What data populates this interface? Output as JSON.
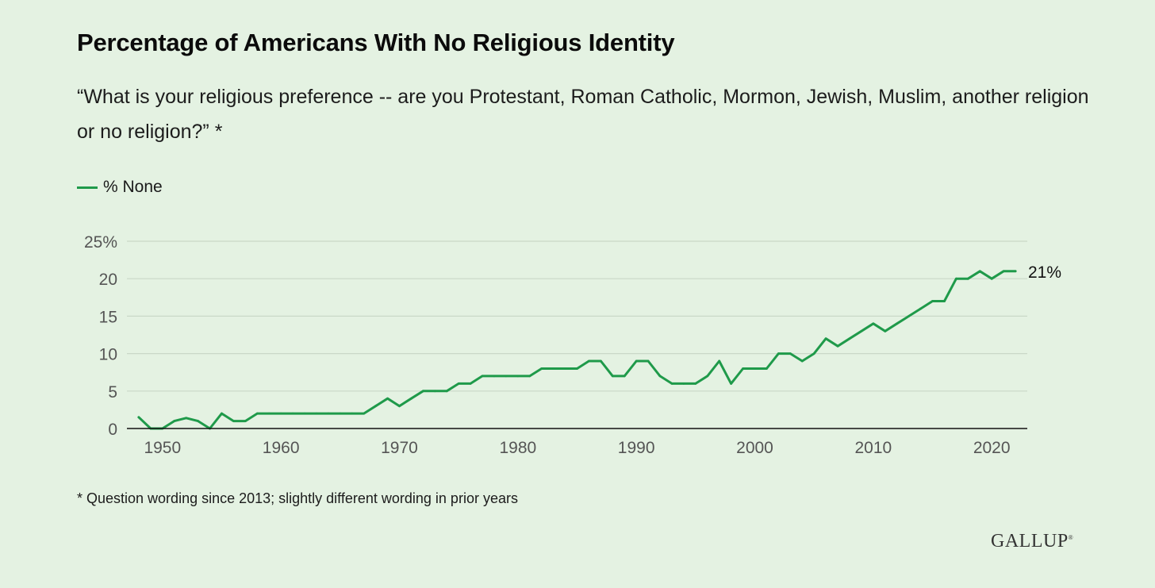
{
  "title": "Percentage of Americans With No Religious Identity",
  "subtitle": "“What is your religious preference -- are you Protestant, Roman Catholic, Mormon, Jewish, Muslim, another religion or no religion?” *",
  "footnote": "* Question wording since 2013; slightly different wording in prior years",
  "logo": "GALLUP",
  "colors": {
    "background": "#e4f2e2",
    "line": "#1f9a4a",
    "grid": "#c9d8c7",
    "axis": "#111111",
    "tick_text": "#555555"
  },
  "chart_data": {
    "type": "line",
    "title": "Percentage of Americans With No Religious Identity",
    "legend_position": "top-left",
    "grid": true,
    "xlim": [
      1947,
      2023
    ],
    "ylim": [
      0,
      25
    ],
    "x_ticks": [
      1950,
      1960,
      1970,
      1980,
      1990,
      2000,
      2010,
      2020
    ],
    "x_tick_labels": [
      "1950",
      "1960",
      "1970",
      "1980",
      "1990",
      "2000",
      "2010",
      "2020"
    ],
    "y_ticks": [
      0,
      5,
      10,
      15,
      20,
      25
    ],
    "y_tick_labels": [
      "0",
      "5",
      "10",
      "15",
      "20",
      "25%"
    ],
    "series": [
      {
        "name": "% None",
        "end_label": "21%",
        "points": [
          [
            1948,
            1.5
          ],
          [
            1949,
            0
          ],
          [
            1950,
            0
          ],
          [
            1951,
            1
          ],
          [
            1952,
            1.4
          ],
          [
            1953,
            1
          ],
          [
            1954,
            0
          ],
          [
            1955,
            2
          ],
          [
            1956,
            1
          ],
          [
            1957,
            1
          ],
          [
            1958,
            2
          ],
          [
            1959,
            2
          ],
          [
            1960,
            2
          ],
          [
            1961,
            2
          ],
          [
            1962,
            2
          ],
          [
            1963,
            2
          ],
          [
            1964,
            2
          ],
          [
            1965,
            2
          ],
          [
            1966,
            2
          ],
          [
            1967,
            2
          ],
          [
            1968,
            3
          ],
          [
            1969,
            4
          ],
          [
            1970,
            3
          ],
          [
            1971,
            4
          ],
          [
            1972,
            5
          ],
          [
            1973,
            5
          ],
          [
            1974,
            5
          ],
          [
            1975,
            6
          ],
          [
            1976,
            6
          ],
          [
            1977,
            7
          ],
          [
            1978,
            7
          ],
          [
            1979,
            7
          ],
          [
            1980,
            7
          ],
          [
            1981,
            7
          ],
          [
            1982,
            8
          ],
          [
            1983,
            8
          ],
          [
            1984,
            8
          ],
          [
            1985,
            8
          ],
          [
            1986,
            9
          ],
          [
            1987,
            9
          ],
          [
            1988,
            7
          ],
          [
            1989,
            7
          ],
          [
            1990,
            9
          ],
          [
            1991,
            9
          ],
          [
            1992,
            7
          ],
          [
            1993,
            6
          ],
          [
            1994,
            6
          ],
          [
            1995,
            6
          ],
          [
            1996,
            7
          ],
          [
            1997,
            9
          ],
          [
            1998,
            6
          ],
          [
            1999,
            8
          ],
          [
            2000,
            8
          ],
          [
            2001,
            8
          ],
          [
            2002,
            10
          ],
          [
            2003,
            10
          ],
          [
            2004,
            9
          ],
          [
            2005,
            10
          ],
          [
            2006,
            12
          ],
          [
            2007,
            11
          ],
          [
            2008,
            12
          ],
          [
            2009,
            13
          ],
          [
            2010,
            14
          ],
          [
            2011,
            13
          ],
          [
            2012,
            14
          ],
          [
            2013,
            15
          ],
          [
            2014,
            16
          ],
          [
            2015,
            17
          ],
          [
            2016,
            17
          ],
          [
            2017,
            20
          ],
          [
            2018,
            20
          ],
          [
            2019,
            21
          ],
          [
            2020,
            20
          ],
          [
            2021,
            21
          ],
          [
            2022,
            21
          ]
        ]
      }
    ]
  }
}
